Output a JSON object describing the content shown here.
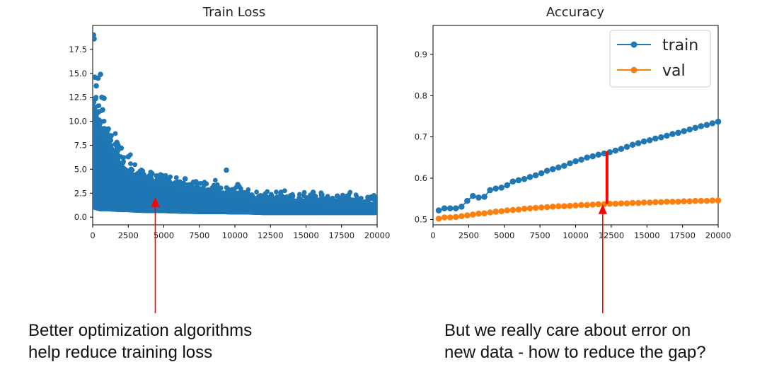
{
  "chart_data": [
    {
      "type": "scatter",
      "title": "Train Loss",
      "xlabel": "",
      "ylabel": "",
      "xlim": [
        0,
        20000
      ],
      "ylim": [
        -0.8,
        20.0
      ],
      "xticks": [
        0,
        2500,
        5000,
        7500,
        10000,
        12500,
        15000,
        17500,
        20000
      ],
      "yticks": [
        0.0,
        2.5,
        5.0,
        7.5,
        10.0,
        12.5,
        15.0,
        17.5
      ],
      "ytick_labels": [
        "0.0",
        "2.5",
        "5.0",
        "7.5",
        "10.0",
        "12.5",
        "15.0",
        "17.5"
      ],
      "color": "#1f77b4",
      "envelope": {
        "x": [
          0,
          500,
          1000,
          1500,
          2000,
          2500,
          3000,
          4000,
          5000,
          6000,
          7500,
          9000,
          10000,
          11000,
          12000,
          13000,
          14000,
          15000,
          16000,
          17000,
          18000,
          19000,
          20000
        ],
        "upper": [
          12.0,
          9.5,
          8.2,
          6.8,
          5.4,
          4.8,
          4.3,
          3.8,
          3.5,
          3.3,
          3.0,
          2.6,
          2.3,
          2.0,
          1.9,
          1.8,
          1.7,
          1.6,
          1.6,
          1.5,
          1.5,
          1.4,
          1.4
        ],
        "lower": [
          1.0,
          0.8,
          0.8,
          0.75,
          0.7,
          0.7,
          0.65,
          0.6,
          0.6,
          0.55,
          0.5,
          0.5,
          0.45,
          0.45,
          0.4,
          0.4,
          0.4,
          0.4,
          0.4,
          0.4,
          0.4,
          0.4,
          0.4
        ]
      },
      "outliers": [
        {
          "x": 60,
          "y": 19.0
        },
        {
          "x": 100,
          "y": 18.6
        },
        {
          "x": 150,
          "y": 14.6
        },
        {
          "x": 250,
          "y": 13.7
        },
        {
          "x": 380,
          "y": 14.5
        },
        {
          "x": 550,
          "y": 14.9
        },
        {
          "x": 650,
          "y": 12.5
        },
        {
          "x": 800,
          "y": 12.4
        },
        {
          "x": 420,
          "y": 11.0
        },
        {
          "x": 700,
          "y": 11.2
        },
        {
          "x": 1100,
          "y": 9.2
        },
        {
          "x": 1300,
          "y": 8.5
        },
        {
          "x": 1700,
          "y": 7.8
        },
        {
          "x": 2000,
          "y": 7.2
        },
        {
          "x": 2500,
          "y": 6.3
        },
        {
          "x": 3500,
          "y": 4.8
        },
        {
          "x": 4500,
          "y": 4.3
        },
        {
          "x": 5200,
          "y": 3.9
        },
        {
          "x": 6500,
          "y": 4.0
        },
        {
          "x": 9400,
          "y": 4.9
        },
        {
          "x": 10200,
          "y": 3.4
        },
        {
          "x": 11200,
          "y": 2.3
        },
        {
          "x": 15500,
          "y": 2.6
        },
        {
          "x": 16100,
          "y": 2.3
        },
        {
          "x": 17200,
          "y": 2.2
        }
      ]
    },
    {
      "type": "line",
      "title": "Accuracy",
      "xlabel": "",
      "ylabel": "",
      "xlim": [
        0,
        20000
      ],
      "ylim": [
        0.487,
        0.97
      ],
      "xticks": [
        0,
        2500,
        5000,
        7500,
        10000,
        12500,
        15000,
        17500,
        20000
      ],
      "yticks": [
        0.5,
        0.6,
        0.7,
        0.8,
        0.9
      ],
      "ytick_labels": [
        "0.5",
        "0.6",
        "0.7",
        "0.8",
        "0.9"
      ],
      "legend_position": "top-right",
      "x": [
        400,
        800,
        1200,
        1600,
        2000,
        2400,
        2800,
        3200,
        3600,
        4000,
        4400,
        4800,
        5200,
        5600,
        6000,
        6400,
        6800,
        7200,
        7600,
        8000,
        8400,
        8800,
        9200,
        9600,
        10000,
        10400,
        10800,
        11200,
        11600,
        12000,
        12400,
        12800,
        13200,
        13600,
        14000,
        14400,
        14800,
        15200,
        15600,
        16000,
        16400,
        16800,
        17200,
        17600,
        18000,
        18400,
        18800,
        19200,
        19600,
        20000
      ],
      "series": [
        {
          "name": "train",
          "color": "#1f77b4",
          "values": [
            0.522,
            0.527,
            0.527,
            0.527,
            0.531,
            0.545,
            0.557,
            0.553,
            0.555,
            0.571,
            0.575,
            0.577,
            0.583,
            0.592,
            0.595,
            0.598,
            0.603,
            0.607,
            0.612,
            0.618,
            0.622,
            0.626,
            0.63,
            0.636,
            0.641,
            0.645,
            0.65,
            0.653,
            0.657,
            0.66,
            0.663,
            0.667,
            0.671,
            0.676,
            0.681,
            0.685,
            0.689,
            0.692,
            0.696,
            0.699,
            0.703,
            0.707,
            0.71,
            0.714,
            0.718,
            0.722,
            0.726,
            0.729,
            0.733,
            0.737
          ]
        },
        {
          "name": "val",
          "color": "#ff7f0e",
          "values": [
            0.502,
            0.505,
            0.505,
            0.506,
            0.508,
            0.51,
            0.512,
            0.514,
            0.515,
            0.517,
            0.519,
            0.52,
            0.522,
            0.523,
            0.524,
            0.526,
            0.527,
            0.528,
            0.529,
            0.53,
            0.531,
            0.532,
            0.532,
            0.533,
            0.534,
            0.535,
            0.535,
            0.536,
            0.537,
            0.537,
            0.538,
            0.538,
            0.539,
            0.539,
            0.54,
            0.54,
            0.541,
            0.541,
            0.542,
            0.542,
            0.543,
            0.543,
            0.543,
            0.544,
            0.544,
            0.545,
            0.545,
            0.545,
            0.546,
            0.546
          ]
        }
      ],
      "gap_marker": {
        "x": 12200,
        "from": 0.538,
        "to": 0.665,
        "color": "#ff0000"
      }
    }
  ],
  "annotations": {
    "arrow_color": "#ff0000",
    "left_arrow_target": {
      "chart": 0,
      "x": 4400,
      "y": 2.1
    },
    "right_arrow_target": {
      "chart": 1,
      "x": 11900,
      "y": 0.537
    },
    "left_caption": [
      "Better optimization algorithms",
      "help reduce training loss"
    ],
    "right_caption": [
      "But we really care about error on",
      "new data - how to reduce the gap?"
    ]
  }
}
